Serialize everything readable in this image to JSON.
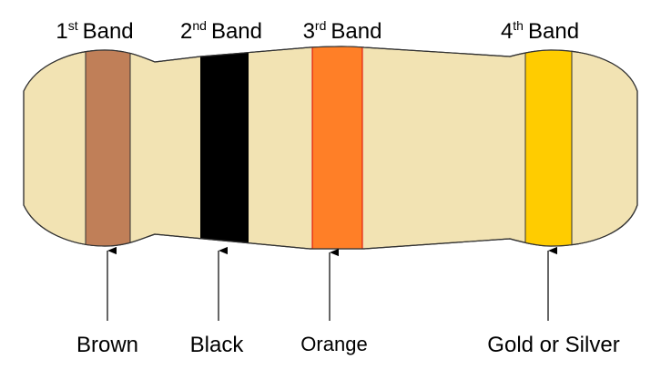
{
  "bands": [
    {
      "ordinal": "1",
      "suffix": "st",
      "word": "Band",
      "color_name": "Brown",
      "color": "#c07f58"
    },
    {
      "ordinal": "2",
      "suffix": "nd",
      "word": "Band",
      "color_name": "Black",
      "color": "#000000"
    },
    {
      "ordinal": "3",
      "suffix": "rd",
      "word": "Band",
      "color_name": "Orange",
      "color": "#ff7f27"
    },
    {
      "ordinal": "4",
      "suffix": "th",
      "word": "Band",
      "color_name": "Gold or Silver",
      "color": "#ffcc00"
    }
  ],
  "body_color": "#f2e3b3"
}
